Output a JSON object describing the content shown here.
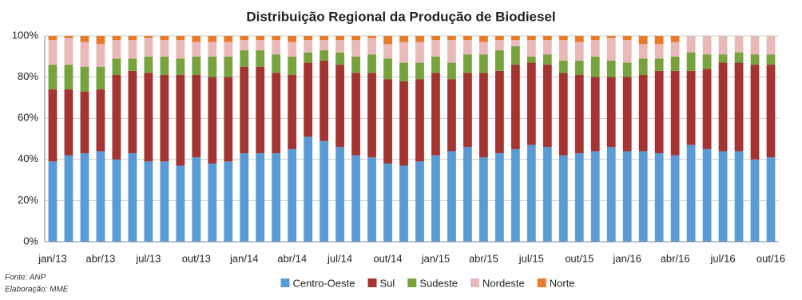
{
  "chart_data": {
    "type": "bar",
    "stacked": true,
    "title": "Distribuição Regional da Produção de Biodiesel",
    "source": "Fonte: ANP",
    "credit": "Elaboração: MME",
    "categories": [
      "jan/13",
      null,
      null,
      "abr/13",
      null,
      null,
      "jul/13",
      null,
      null,
      "out/13",
      null,
      null,
      "jan/14",
      null,
      null,
      "abr/14",
      null,
      null,
      "jul/14",
      null,
      null,
      "out/14",
      null,
      null,
      "jan/15",
      null,
      null,
      "abr/15",
      null,
      null,
      "jul/15",
      null,
      null,
      "out/15",
      null,
      null,
      "jan/16",
      null,
      null,
      "abr/16",
      null,
      null,
      "jul/16",
      null,
      null,
      "out/16"
    ],
    "series": [
      {
        "name": "Centro-Oeste",
        "color": "#5b9bd5",
        "values": [
          39,
          42,
          43,
          44,
          40,
          43,
          39,
          39,
          37,
          41,
          38,
          39,
          43,
          43,
          43,
          45,
          51,
          49,
          46,
          42,
          41,
          38,
          37,
          39,
          42,
          44,
          46,
          41,
          43,
          45,
          47,
          46,
          42,
          43,
          44,
          46,
          44,
          44,
          43,
          42,
          47,
          45,
          44,
          44,
          40,
          41
        ]
      },
      {
        "name": "Sul",
        "color": "#a33431",
        "values": [
          35,
          32,
          30,
          30,
          41,
          40,
          43,
          42,
          44,
          40,
          42,
          41,
          42,
          42,
          39,
          36,
          36,
          39,
          40,
          40,
          41,
          41,
          41,
          40,
          40,
          35,
          36,
          41,
          40,
          41,
          40,
          40,
          40,
          38,
          36,
          34,
          36,
          37,
          40,
          41,
          36,
          39,
          43,
          43,
          46,
          45
        ]
      },
      {
        "name": "Sudeste",
        "color": "#78a23c",
        "values": [
          12,
          12,
          12,
          11,
          8,
          6,
          8,
          9,
          8,
          9,
          10,
          10,
          8,
          8,
          9,
          9,
          5,
          5,
          6,
          8,
          9,
          10,
          9,
          8,
          8,
          8,
          9,
          9,
          10,
          9,
          3,
          5,
          6,
          7,
          10,
          8,
          7,
          8,
          6,
          7,
          9,
          7,
          4,
          5,
          5,
          5
        ]
      },
      {
        "name": "Nordeste",
        "color": "#e8b9b8",
        "values": [
          12,
          13,
          12,
          11,
          9,
          9,
          9,
          8,
          9,
          7,
          7,
          7,
          5,
          5,
          7,
          7,
          6,
          5,
          6,
          8,
          8,
          7,
          10,
          10,
          8,
          11,
          7,
          6,
          5,
          3,
          8,
          7,
          10,
          9,
          8,
          11,
          11,
          7,
          7,
          7,
          8,
          9,
          9,
          8,
          9,
          9
        ]
      },
      {
        "name": "Norte",
        "color": "#e97a29",
        "values": [
          2,
          1,
          3,
          4,
          2,
          2,
          1,
          2,
          2,
          3,
          3,
          3,
          2,
          2,
          2,
          3,
          2,
          2,
          2,
          2,
          1,
          4,
          3,
          3,
          2,
          2,
          2,
          3,
          2,
          2,
          2,
          2,
          2,
          3,
          2,
          1,
          2,
          4,
          4,
          3,
          0,
          0,
          0,
          0,
          0,
          0
        ]
      }
    ],
    "ylim": [
      0,
      100
    ],
    "yticks": [
      {
        "value": 0,
        "label": "0%"
      },
      {
        "value": 20,
        "label": "20%"
      },
      {
        "value": 40,
        "label": "40%"
      },
      {
        "value": 60,
        "label": "60%"
      },
      {
        "value": 80,
        "label": "80%"
      },
      {
        "value": 100,
        "label": "100%"
      }
    ],
    "grid": true,
    "legend": "bottom"
  }
}
